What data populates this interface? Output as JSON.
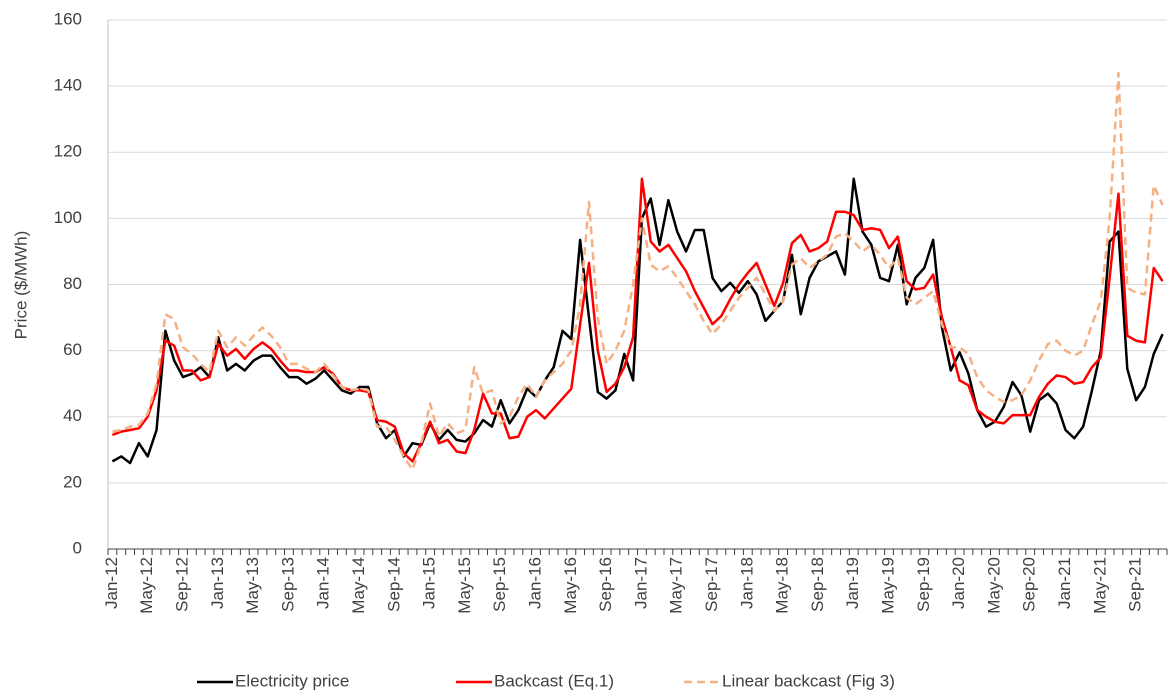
{
  "chart_data": {
    "type": "line",
    "y_label": "Price ($/MWh)",
    "categories": [
      "Jan-12",
      null,
      null,
      null,
      "May-12",
      null,
      null,
      null,
      "Sep-12",
      null,
      null,
      null,
      "Jan-13",
      null,
      null,
      null,
      "May-13",
      null,
      null,
      null,
      "Sep-13",
      null,
      null,
      null,
      "Jan-14",
      null,
      null,
      null,
      "May-14",
      null,
      null,
      null,
      "Sep-14",
      null,
      null,
      null,
      "Jan-15",
      null,
      null,
      null,
      "May-15",
      null,
      null,
      null,
      "Sep-15",
      null,
      null,
      null,
      "Jan-16",
      null,
      null,
      null,
      "May-16",
      null,
      null,
      null,
      "Sep-16",
      null,
      null,
      null,
      "Jan-17",
      null,
      null,
      null,
      "May-17",
      null,
      null,
      null,
      "Sep-17",
      null,
      null,
      null,
      "Jan-18",
      null,
      null,
      null,
      "May-18",
      null,
      null,
      null,
      "Sep-18",
      null,
      null,
      null,
      "Jan-19",
      null,
      null,
      null,
      "May-19",
      null,
      null,
      null,
      "Sep-19",
      null,
      null,
      null,
      "Jan-20",
      null,
      null,
      null,
      "May-20",
      null,
      null,
      null,
      "Sep-20",
      null,
      null,
      null,
      "Jan-21",
      null,
      null,
      null,
      "May-21",
      null,
      null,
      null,
      "Sep-21",
      null,
      null,
      null
    ],
    "series": [
      {
        "name": "Electricity price",
        "color": "#000000",
        "dashed": false,
        "values": [
          26.5,
          28,
          26,
          32,
          28,
          36,
          66,
          57,
          52,
          53,
          55,
          52,
          64,
          54,
          56,
          54,
          57,
          58.5,
          58.5,
          55,
          52,
          52,
          50,
          51.5,
          54,
          51,
          48,
          47,
          49,
          49,
          38,
          33.5,
          36,
          28,
          32,
          31.5,
          38,
          33,
          36,
          33,
          32.5,
          35,
          39,
          37,
          45,
          38,
          42,
          48.5,
          46,
          51,
          55,
          66,
          63.5,
          93.5,
          70,
          47.5,
          45.5,
          48,
          59,
          51,
          100,
          106,
          92,
          105.5,
          96,
          90,
          96.5,
          96.5,
          82,
          78,
          80.5,
          77.5,
          81,
          77,
          69,
          72,
          75,
          89,
          71,
          82,
          87,
          88.5,
          90,
          83,
          112,
          96,
          92,
          82,
          81,
          92,
          74,
          82,
          85,
          93.5,
          67,
          54,
          59.5,
          53,
          42,
          37,
          38.5,
          43,
          50.5,
          46.5,
          35.5,
          45,
          47,
          44,
          36,
          33.5,
          37,
          48,
          60,
          93,
          96,
          54.5,
          45,
          49,
          59,
          65
        ]
      },
      {
        "name": "Backcast (Eq.1)",
        "color": "#ff0000",
        "dashed": false,
        "values": [
          34.5,
          35.5,
          36,
          36.5,
          40,
          48,
          63,
          61.5,
          54,
          54,
          51,
          52,
          62,
          58.5,
          60.5,
          57.5,
          60.5,
          62.5,
          60.5,
          57,
          54,
          54,
          53.5,
          53.5,
          55,
          53,
          49,
          48,
          48,
          47.5,
          39,
          38.5,
          37,
          29,
          26.5,
          32,
          38.5,
          32,
          33,
          29.5,
          29,
          36,
          47,
          41,
          41,
          33.5,
          34,
          40,
          42,
          39.5,
          42.5,
          45.5,
          48.5,
          68,
          86.5,
          60,
          47.5,
          50,
          55,
          64,
          112,
          93,
          90,
          92,
          88,
          84,
          78,
          73,
          68,
          70.5,
          75.5,
          80,
          83.5,
          86.5,
          80,
          73.5,
          80.5,
          92.5,
          95,
          90,
          91,
          93,
          102,
          102,
          101,
          96.5,
          97,
          96.5,
          91,
          94.5,
          81,
          78.5,
          79,
          83,
          70,
          61,
          51,
          49.5,
          42,
          40,
          38.5,
          38,
          40.5,
          40.5,
          40.5,
          46,
          50,
          52.5,
          52,
          50,
          50.5,
          55,
          58,
          82,
          107.5,
          64.5,
          63,
          62.5,
          85,
          81
        ]
      },
      {
        "name": "Linear backcast (Fig 3)",
        "color": "#f4b183",
        "dashed": true,
        "values": [
          35.5,
          36,
          37,
          37.5,
          41,
          50,
          71,
          69.5,
          61,
          59,
          56,
          53.5,
          66,
          61,
          64,
          61.5,
          64.5,
          67,
          64.5,
          61,
          56,
          56,
          54.5,
          53.5,
          56,
          52.5,
          49,
          48,
          48.5,
          48,
          37,
          37,
          33,
          28,
          24,
          32,
          44,
          34,
          38,
          35,
          36,
          55,
          47,
          48,
          38,
          40,
          46,
          50,
          46,
          51,
          53.5,
          56,
          60,
          74,
          105,
          70,
          56,
          60,
          66,
          80,
          100,
          86,
          84,
          85.5,
          82,
          78,
          74,
          69,
          65,
          68,
          72,
          76,
          79,
          82,
          77,
          72,
          75,
          86,
          88,
          85,
          87,
          89,
          94.5,
          95.5,
          93,
          90,
          92,
          89,
          85,
          88,
          76,
          74,
          76,
          78,
          68,
          61,
          61,
          59,
          52,
          48,
          46,
          44.5,
          45,
          46.5,
          51,
          57,
          62,
          63,
          60,
          58.5,
          60,
          68,
          75,
          100,
          144,
          79,
          77.5,
          77,
          110,
          104
        ]
      }
    ],
    "ylim": [
      0,
      160
    ],
    "yticks": [
      0,
      20,
      40,
      60,
      80,
      100,
      120,
      140,
      160
    ],
    "grid": true,
    "legend": "bottom"
  }
}
